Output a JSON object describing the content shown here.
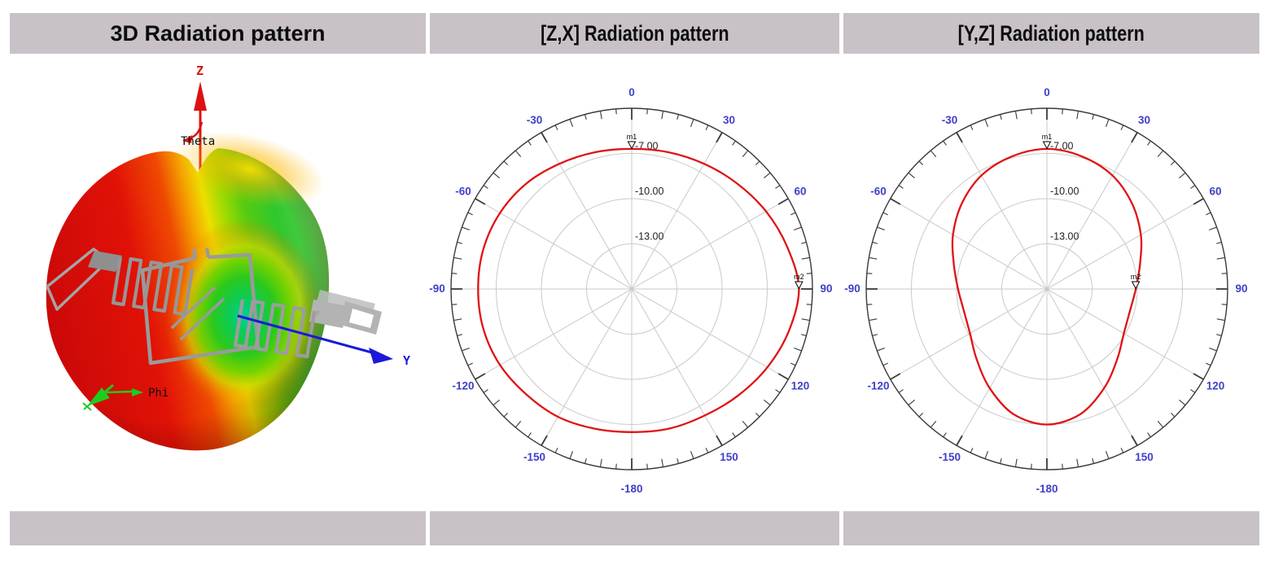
{
  "panels": {
    "p3d": {
      "title": "3D Radiation pattern"
    },
    "pzx": {
      "title": "[Z,X] Radiation pattern"
    },
    "pyz": {
      "title": "[Y,Z] Radiation pattern"
    }
  },
  "axes3d": {
    "z": "Z",
    "theta": "Theta",
    "y": "Y",
    "phi": "Phi"
  },
  "colors": {
    "header_bg": "#c8c2c8",
    "curve": "#e01212",
    "angle_label": "#4040c8",
    "grid": "#c9c9c9",
    "ring": "#3a3a3a",
    "axis_z": "#dd1111",
    "axis_y": "#1a1ad8",
    "axis_phi": "#1ecc1e",
    "antenna": "#9a9a9a"
  },
  "chart_data": [
    {
      "type": "3d-surface",
      "title": "3D Radiation pattern",
      "axis_labels": [
        "Z",
        "Y",
        "Theta",
        "Phi"
      ],
      "description": "3D antenna gain lobe over a meander-line tag antenna; surface shaded red (low) through yellow to green (high) with a green dimple toward +Y and a notch at +Z"
    },
    {
      "type": "polar",
      "title": "[Z,X] Radiation pattern",
      "angle_unit": "deg",
      "angle_labels": [
        "0",
        "30",
        "60",
        "90",
        "120",
        "150",
        "-180",
        "-150",
        "-120",
        "-90",
        "-60",
        "-30"
      ],
      "radial_axis": {
        "outer_db": -4.0,
        "center_db": -16.0,
        "gridlines_db": [
          -7,
          -10,
          -13
        ],
        "gridline_labels": [
          "-7.00",
          "-10.00",
          "-13.00"
        ]
      },
      "markers": [
        {
          "name": "m1",
          "angle": 0
        },
        {
          "name": "m2",
          "angle": 90
        }
      ],
      "series": [
        {
          "name": "gain_dB",
          "color": "#e01212",
          "points": [
            [
              0,
              -6.7
            ],
            [
              15,
              -6.6
            ],
            [
              30,
              -6.4
            ],
            [
              45,
              -6.1
            ],
            [
              60,
              -5.7
            ],
            [
              75,
              -5.3
            ],
            [
              90,
              -4.9
            ],
            [
              105,
              -5.2
            ],
            [
              120,
              -5.6
            ],
            [
              135,
              -6.0
            ],
            [
              150,
              -6.3
            ],
            [
              165,
              -6.4
            ],
            [
              180,
              -6.5
            ],
            [
              195,
              -6.4
            ],
            [
              210,
              -6.2
            ],
            [
              225,
              -6.1
            ],
            [
              240,
              -5.9
            ],
            [
              255,
              -5.8
            ],
            [
              270,
              -5.8
            ],
            [
              285,
              -5.8
            ],
            [
              300,
              -5.9
            ],
            [
              315,
              -6.1
            ],
            [
              330,
              -6.4
            ],
            [
              345,
              -6.6
            ]
          ]
        }
      ]
    },
    {
      "type": "polar",
      "title": "[Y,Z] Radiation pattern",
      "angle_unit": "deg",
      "angle_labels": [
        "0",
        "30",
        "60",
        "90",
        "120",
        "150",
        "-180",
        "-150",
        "-120",
        "-90",
        "-60",
        "-30"
      ],
      "radial_axis": {
        "outer_db": -4.0,
        "center_db": -16.0,
        "gridlines_db": [
          -7,
          -10,
          -13
        ],
        "gridline_labels": [
          "-7.00",
          "-10.00",
          "-13.00"
        ]
      },
      "markers": [
        {
          "name": "m1",
          "angle": 0
        },
        {
          "name": "m2",
          "angle": 90
        }
      ],
      "series": [
        {
          "name": "gain_dB",
          "color": "#e01212",
          "points": [
            [
              0,
              -6.7
            ],
            [
              15,
              -6.9
            ],
            [
              30,
              -7.3
            ],
            [
              45,
              -8.0
            ],
            [
              60,
              -8.8
            ],
            [
              75,
              -9.6
            ],
            [
              90,
              -10.1
            ],
            [
              105,
              -10.3
            ],
            [
              120,
              -10.1
            ],
            [
              135,
              -9.4
            ],
            [
              150,
              -8.4
            ],
            [
              165,
              -7.4
            ],
            [
              180,
              -7.0
            ],
            [
              195,
              -7.4
            ],
            [
              210,
              -8.4
            ],
            [
              225,
              -9.4
            ],
            [
              240,
              -10.1
            ],
            [
              255,
              -10.3
            ],
            [
              270,
              -10.1
            ],
            [
              285,
              -9.6
            ],
            [
              300,
              -8.8
            ],
            [
              315,
              -8.0
            ],
            [
              330,
              -7.3
            ],
            [
              345,
              -6.9
            ]
          ]
        }
      ]
    }
  ]
}
